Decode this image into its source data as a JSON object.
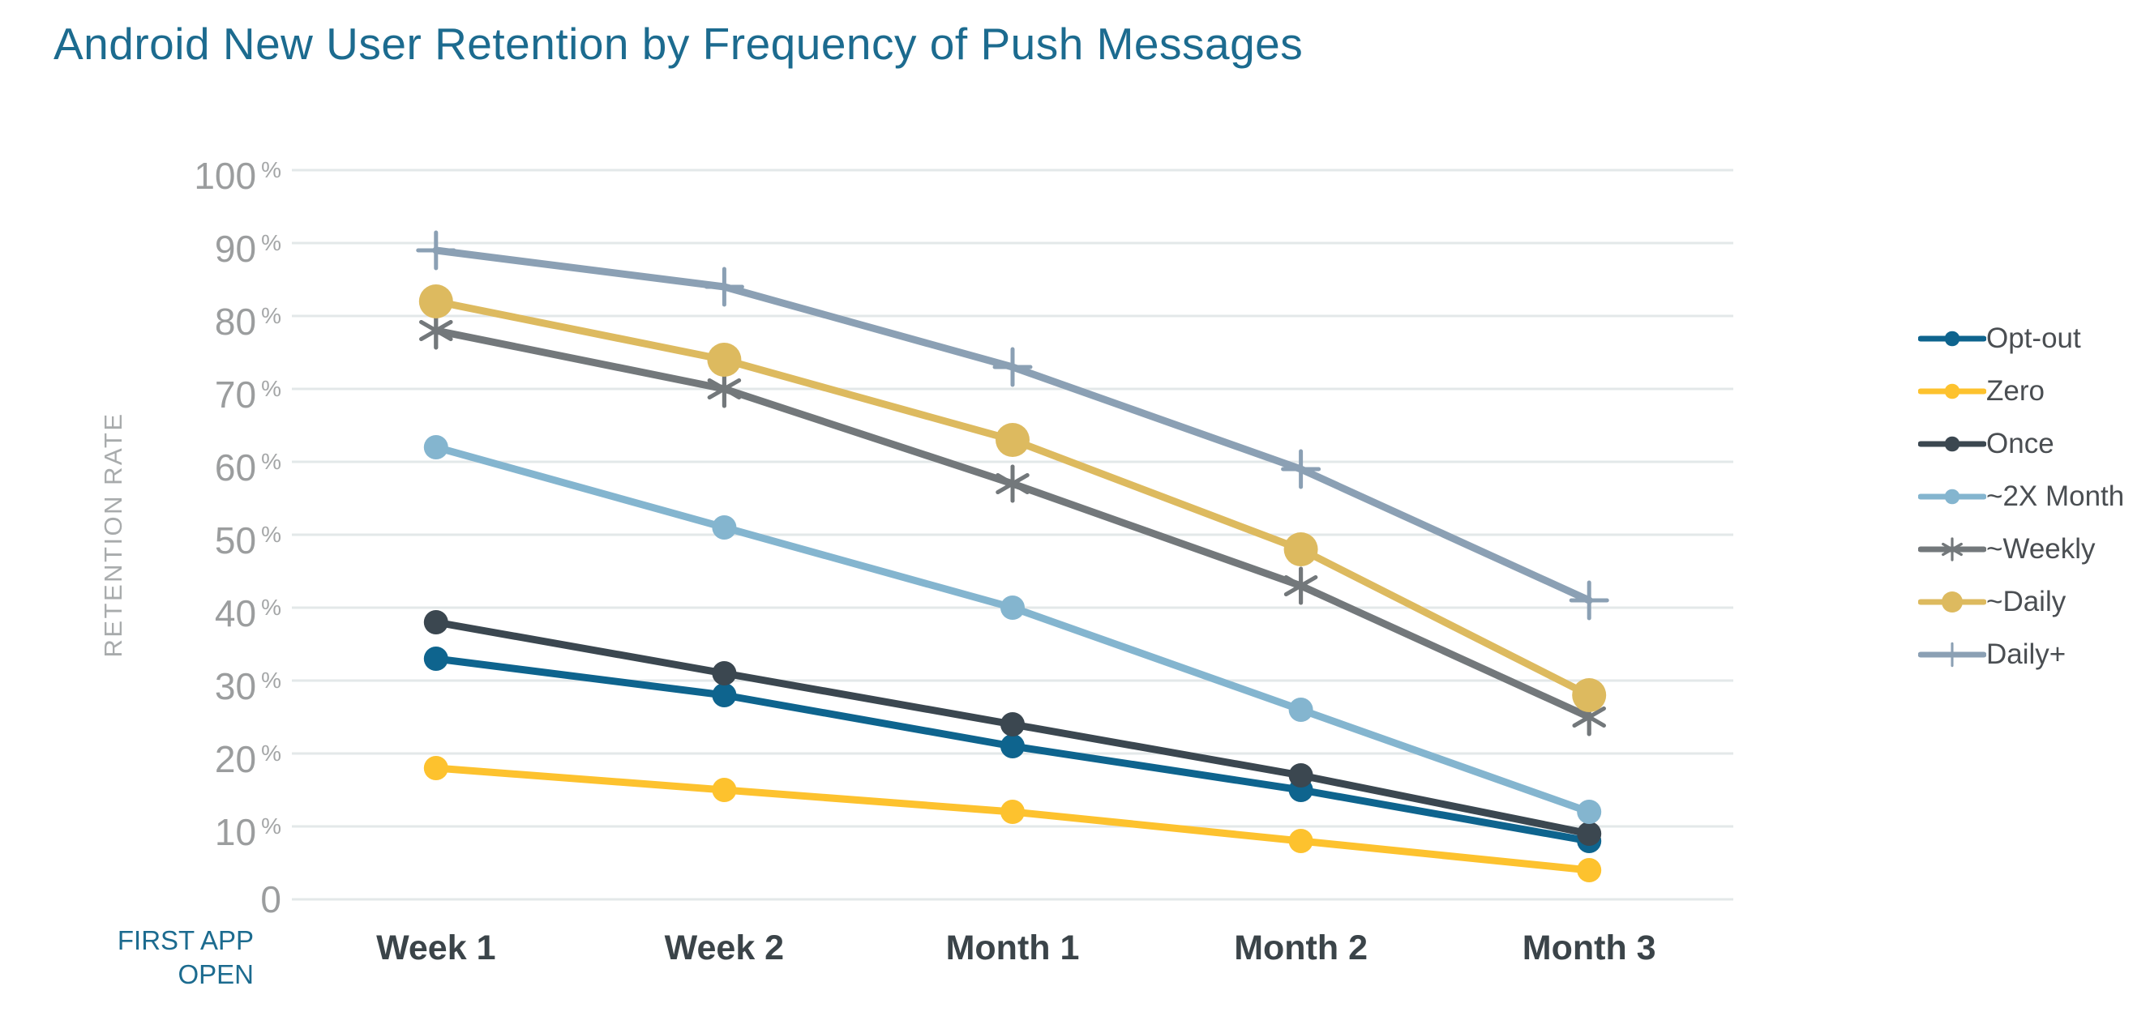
{
  "title": "Android New User Retention by Frequency of Push Messages",
  "axis_note": {
    "lines": [
      "FIRST APP",
      "OPEN"
    ]
  },
  "colors": {
    "title_text": "#1c6b8f",
    "gridline": "#e3e8e9",
    "tick_text": "#9b9d9e",
    "axis_title_text": "#a8abac",
    "x_label_text": "#3b4449",
    "legend_text": "#4a4e52"
  },
  "chart_data": {
    "type": "line",
    "title": "Android New User Retention by Frequency of Push Messages",
    "xlabel": "FIRST APP OPEN",
    "ylabel": "RETENTION RATE",
    "categories": [
      "Week 1",
      "Week 2",
      "Month 1",
      "Month 2",
      "Month 3"
    ],
    "ylim": [
      0,
      100
    ],
    "ytick_interval": 10,
    "ytick_suffix": "%",
    "grid": "horizontal",
    "legend_position": "right",
    "series": [
      {
        "name": "Opt-out",
        "color": "#0e648e",
        "marker": "dot",
        "values": [
          33,
          28,
          21,
          15,
          8
        ]
      },
      {
        "name": "Zero",
        "color": "#fdc22e",
        "marker": "dot",
        "values": [
          18,
          15,
          12,
          8,
          4
        ]
      },
      {
        "name": "Once",
        "color": "#3b4750",
        "marker": "dot",
        "values": [
          38,
          31,
          24,
          17,
          9
        ]
      },
      {
        "name": "~2X Month",
        "color": "#84b5cf",
        "marker": "dot",
        "values": [
          62,
          51,
          40,
          26,
          12
        ]
      },
      {
        "name": "~Weekly",
        "color": "#73787b",
        "marker": "asterisk",
        "values": [
          78,
          70,
          57,
          43,
          25
        ]
      },
      {
        "name": "~Daily",
        "color": "#ddba5f",
        "marker": "dot-large",
        "values": [
          82,
          74,
          63,
          48,
          28
        ]
      },
      {
        "name": "Daily+",
        "color": "#8ba0b4",
        "marker": "plus",
        "values": [
          89,
          84,
          73,
          59,
          41
        ]
      }
    ]
  }
}
